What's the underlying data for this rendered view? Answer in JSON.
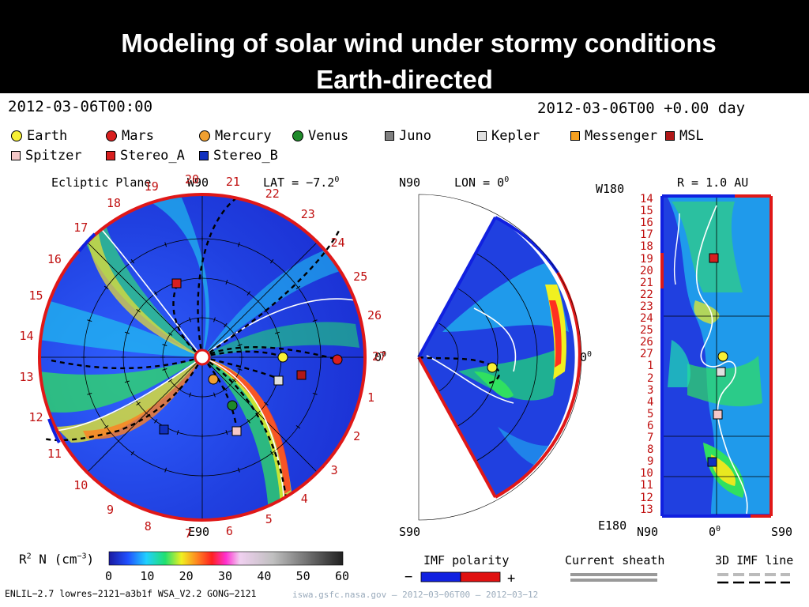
{
  "title": {
    "line1": "Modeling of solar wind under stormy conditions",
    "line2": "Earth-directed"
  },
  "header": {
    "left_date": "2012-03-06T00:00",
    "right_date": "2012-03-06T00 +0.00 day"
  },
  "legend": [
    {
      "label": "Earth",
      "shape": "circle",
      "color": "#f7f035"
    },
    {
      "label": "Mars",
      "shape": "circle",
      "color": "#d81f1f"
    },
    {
      "label": "Mercury",
      "shape": "circle",
      "color": "#f0a030"
    },
    {
      "label": "Venus",
      "shape": "circle",
      "color": "#1f8a2a"
    },
    {
      "label": "Juno",
      "shape": "square",
      "color": "#808080"
    },
    {
      "label": "Kepler",
      "shape": "square",
      "color": "#e0e0e0"
    },
    {
      "label": "Messenger",
      "shape": "square",
      "color": "#f5a020"
    },
    {
      "label": "MSL",
      "shape": "square",
      "color": "#b01818"
    },
    {
      "label": "Spitzer",
      "shape": "square",
      "color": "#f5c8c8"
    },
    {
      "label": "Stereo_A",
      "shape": "square",
      "color": "#d81f1f"
    },
    {
      "label": "Stereo_B",
      "shape": "square",
      "color": "#1030c0"
    }
  ],
  "ecliptic": {
    "label": "Ecliptic Plane",
    "lat_label": "LAT = −7.2",
    "lat_sup": "0",
    "top_label": "W90",
    "bottom_label": "E90",
    "right_label": "0",
    "right_sup": "0",
    "rim_numbers": [
      "1",
      "2",
      "3",
      "4",
      "5",
      "6",
      "7",
      "8",
      "9",
      "10",
      "11",
      "12",
      "13",
      "14",
      "15",
      "16",
      "17",
      "18",
      "19",
      "20",
      "21",
      "22",
      "23",
      "24",
      "25",
      "26",
      "27"
    ]
  },
  "meridional": {
    "top_left": "N90",
    "lon_label": "LON = 0",
    "lon_sup": "0",
    "bottom_left": "S90",
    "right_label": "0",
    "right_sup": "0"
  },
  "radial": {
    "top_left": "W180",
    "r_label": "R = 1.0 AU",
    "bottom_left": "E180",
    "x_labels": [
      "N90",
      "0",
      "S90"
    ],
    "x_sup": "0",
    "y_labels": [
      "14",
      "15",
      "16",
      "17",
      "18",
      "19",
      "20",
      "21",
      "22",
      "23",
      "24",
      "25",
      "26",
      "27",
      "1",
      "2",
      "3",
      "4",
      "5",
      "6",
      "7",
      "8",
      "9",
      "10",
      "11",
      "12",
      "13"
    ]
  },
  "colorbar": {
    "label": "R",
    "label_sup": "2",
    "label_rest": " N (cm",
    "label_unit_sup": "−3",
    "label_close": ")",
    "ticks": [
      "0",
      "10",
      "20",
      "30",
      "40",
      "50",
      "60"
    ]
  },
  "imf": {
    "title": "IMF polarity",
    "minus": "−",
    "plus": "+",
    "neg_color": "#1020e0",
    "pos_color": "#e01010"
  },
  "current_sheath": {
    "title": "Current sheath"
  },
  "imf_line": {
    "title": "3D IMF line"
  },
  "footer": {
    "model": "ENLIL−2.7 lowres−2121−a3b1f WSA_V2.2 GONG−2121",
    "url": "iswa.gsfc.nasa.gov — 2012−03−06T00 — 2012−03−12"
  }
}
